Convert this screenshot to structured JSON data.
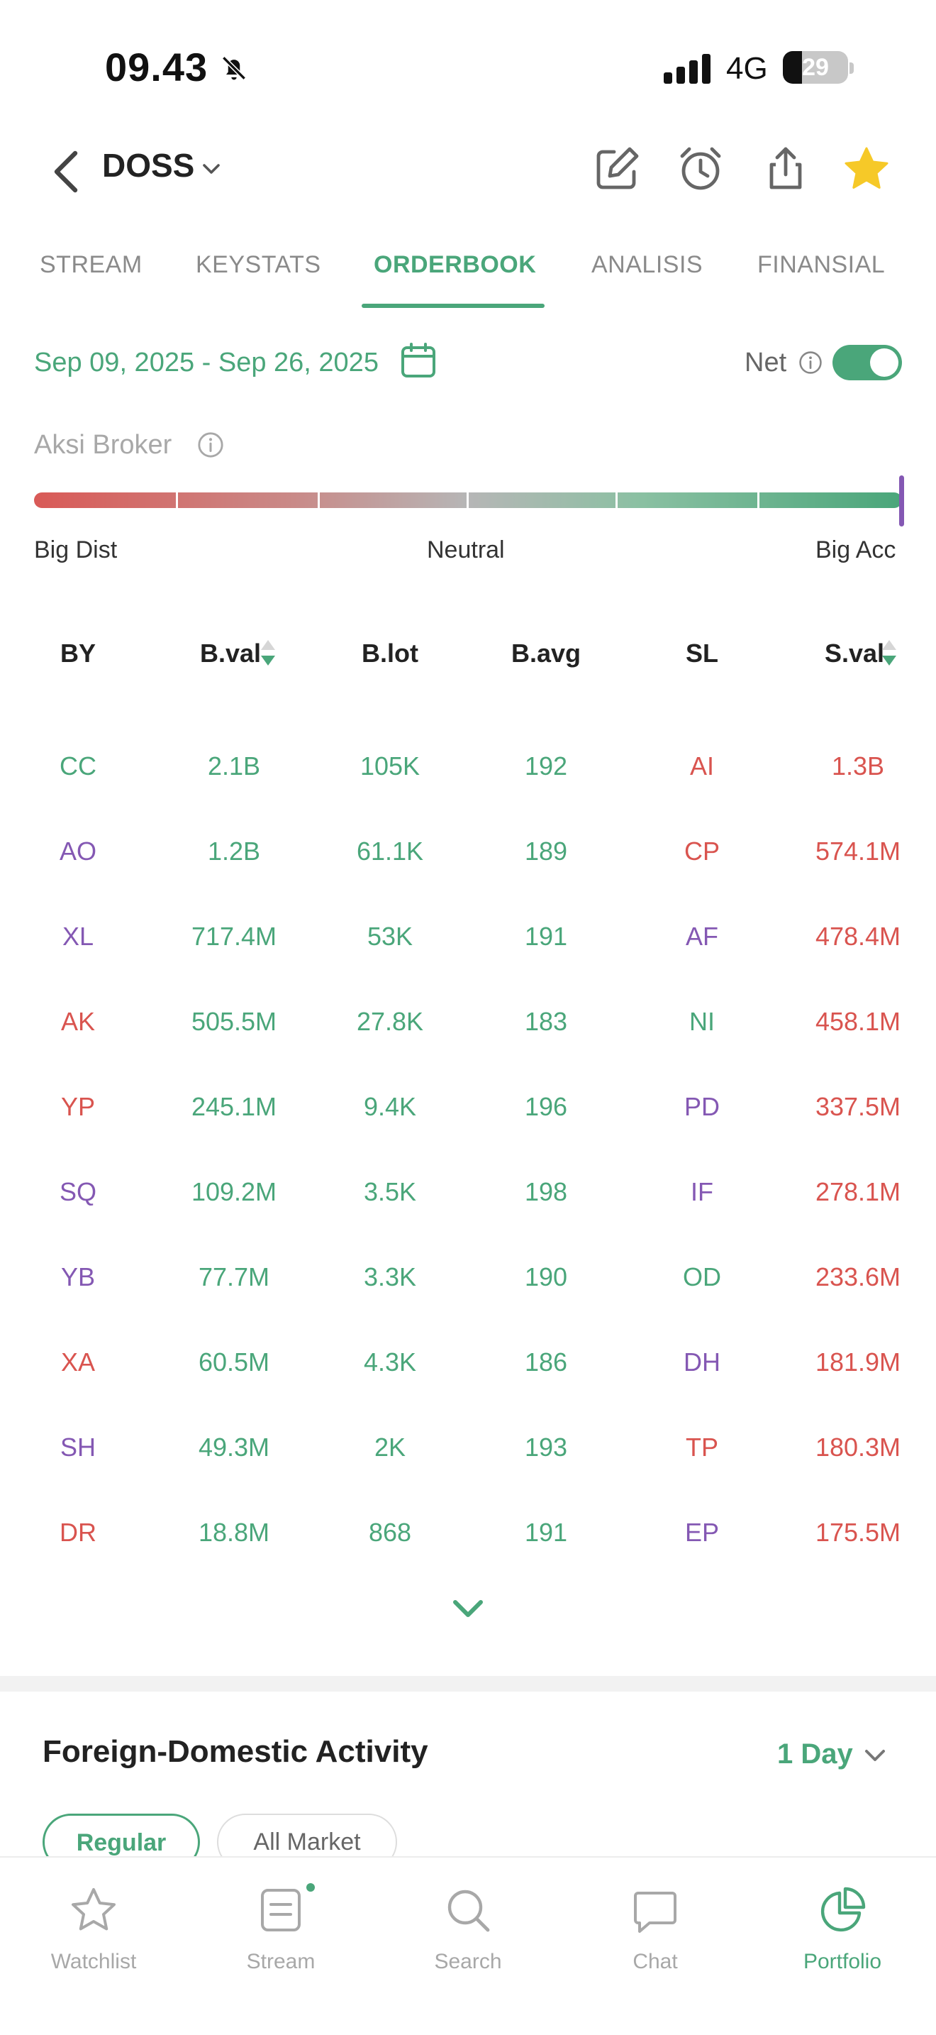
{
  "status_bar": {
    "time": "09.43",
    "network": "4G",
    "battery": "29",
    "battery_level": 0.29
  },
  "header": {
    "ticker": "DOSS"
  },
  "tabs": [
    {
      "label": "STREAM",
      "active": false
    },
    {
      "label": "KEYSTATS",
      "active": false
    },
    {
      "label": "ORDERBOOK",
      "active": true
    },
    {
      "label": "ANALISIS",
      "active": false
    },
    {
      "label": "FINANSIAL",
      "active": false
    }
  ],
  "filter": {
    "date_range": "Sep 09, 2025 - Sep 26, 2025",
    "net_label": "Net",
    "net_enabled": true
  },
  "broker_action": {
    "title": "Aksi Broker",
    "left_label": "Big Dist",
    "center_label": "Neutral",
    "right_label": "Big Acc",
    "marker_position": 1.0
  },
  "table": {
    "headers": [
      "BY",
      "B.val",
      "B.lot",
      "B.avg",
      "SL",
      "S.val"
    ],
    "rows": [
      {
        "by": "CC",
        "bval": "2.1B",
        "blot": "105K",
        "bavg": "192",
        "sl": "AI",
        "sval": "1.3B",
        "by_color": "g",
        "sl_color": "r"
      },
      {
        "by": "AO",
        "bval": "1.2B",
        "blot": "61.1K",
        "bavg": "189",
        "sl": "CP",
        "sval": "574.1M",
        "by_color": "p",
        "sl_color": "r"
      },
      {
        "by": "XL",
        "bval": "717.4M",
        "blot": "53K",
        "bavg": "191",
        "sl": "AF",
        "sval": "478.4M",
        "by_color": "p",
        "sl_color": "p"
      },
      {
        "by": "AK",
        "bval": "505.5M",
        "blot": "27.8K",
        "bavg": "183",
        "sl": "NI",
        "sval": "458.1M",
        "by_color": "r",
        "sl_color": "g"
      },
      {
        "by": "YP",
        "bval": "245.1M",
        "blot": "9.4K",
        "bavg": "196",
        "sl": "PD",
        "sval": "337.5M",
        "by_color": "r",
        "sl_color": "p"
      },
      {
        "by": "SQ",
        "bval": "109.2M",
        "blot": "3.5K",
        "bavg": "198",
        "sl": "IF",
        "sval": "278.1M",
        "by_color": "p",
        "sl_color": "p"
      },
      {
        "by": "YB",
        "bval": "77.7M",
        "blot": "3.3K",
        "bavg": "190",
        "sl": "OD",
        "sval": "233.6M",
        "by_color": "p",
        "sl_color": "g"
      },
      {
        "by": "XA",
        "bval": "60.5M",
        "blot": "4.3K",
        "bavg": "186",
        "sl": "DH",
        "sval": "181.9M",
        "by_color": "r",
        "sl_color": "p"
      },
      {
        "by": "SH",
        "bval": "49.3M",
        "blot": "2K",
        "bavg": "193",
        "sl": "TP",
        "sval": "180.3M",
        "by_color": "p",
        "sl_color": "r"
      },
      {
        "by": "DR",
        "bval": "18.8M",
        "blot": "868",
        "bavg": "191",
        "sl": "EP",
        "sval": "175.5M",
        "by_color": "r",
        "sl_color": "p"
      }
    ]
  },
  "foreign_domestic": {
    "title": "Foreign-Domestic Activity",
    "period": "1 Day",
    "filters": [
      "Regular",
      "All Market"
    ],
    "active_filter": "Regular"
  },
  "bottom_nav": [
    {
      "label": "Watchlist",
      "icon": "star-icon",
      "active": false
    },
    {
      "label": "Stream",
      "icon": "stream-icon",
      "active": false,
      "badge": true
    },
    {
      "label": "Search",
      "icon": "search-icon",
      "active": false
    },
    {
      "label": "Chat",
      "icon": "chat-icon",
      "active": false
    },
    {
      "label": "Portfolio",
      "icon": "pie-chart-icon",
      "active": true
    }
  ],
  "colors": {
    "green": "#4aa67a",
    "red": "#d9544f",
    "purple": "#8458b3",
    "star": "#f6c928"
  }
}
